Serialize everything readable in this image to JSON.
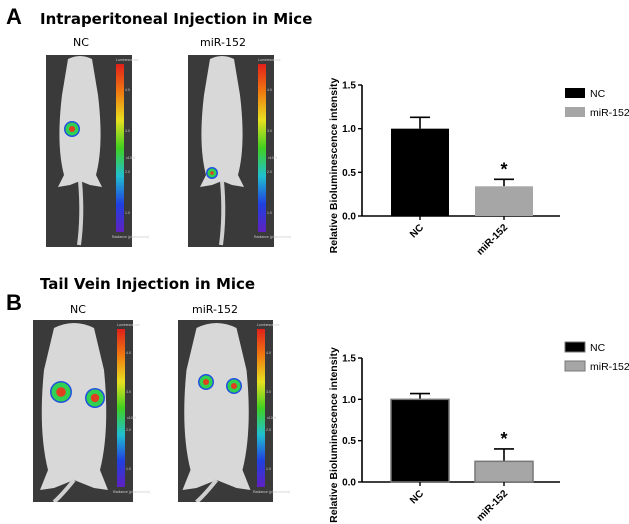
{
  "panels": [
    {
      "label": "A",
      "title": "Intraperitoneal Injection in Mice",
      "groups": [
        "NC",
        "miR-152"
      ]
    },
    {
      "label": "B",
      "title": "Tail Vein Injection in Mice",
      "groups": [
        "NC",
        "miR-152"
      ]
    }
  ],
  "colorbar": {
    "title": "Luminescence",
    "ticks": [
      "4.0",
      "3.0",
      "2.0",
      "1.0"
    ],
    "unit": "x10^8",
    "footer": "Radiance (p/sec/cm²/sr)"
  },
  "chart_data": [
    {
      "type": "bar",
      "categories": [
        "NC",
        "miR-152"
      ],
      "values": [
        1.0,
        0.34
      ],
      "errors": [
        0.13,
        0.08
      ],
      "colors": [
        "#000000",
        "#a6a6a6"
      ],
      "ylabel": "Relative Bioluminescence intensity",
      "ylim": [
        0,
        1.5
      ],
      "yticks": [
        "0.0",
        "0.5",
        "1.0",
        "1.5"
      ],
      "legend": [
        "NC",
        "miR-152"
      ],
      "legend_position": "right",
      "annotations": [
        "",
        "*"
      ],
      "grid": false
    },
    {
      "type": "bar",
      "categories": [
        "NC",
        "miR-152"
      ],
      "values": [
        1.0,
        0.25
      ],
      "errors": [
        0.07,
        0.15
      ],
      "colors": [
        "#000000",
        "#a6a6a6"
      ],
      "ylabel": "Relative Bioluminescence intensity",
      "ylim": [
        0,
        1.5
      ],
      "yticks": [
        "0.0",
        "0.5",
        "1.0",
        "1.5"
      ],
      "legend": [
        "NC",
        "miR-152"
      ],
      "legend_position": "right",
      "annotations": [
        "",
        "*"
      ],
      "grid": false
    }
  ]
}
